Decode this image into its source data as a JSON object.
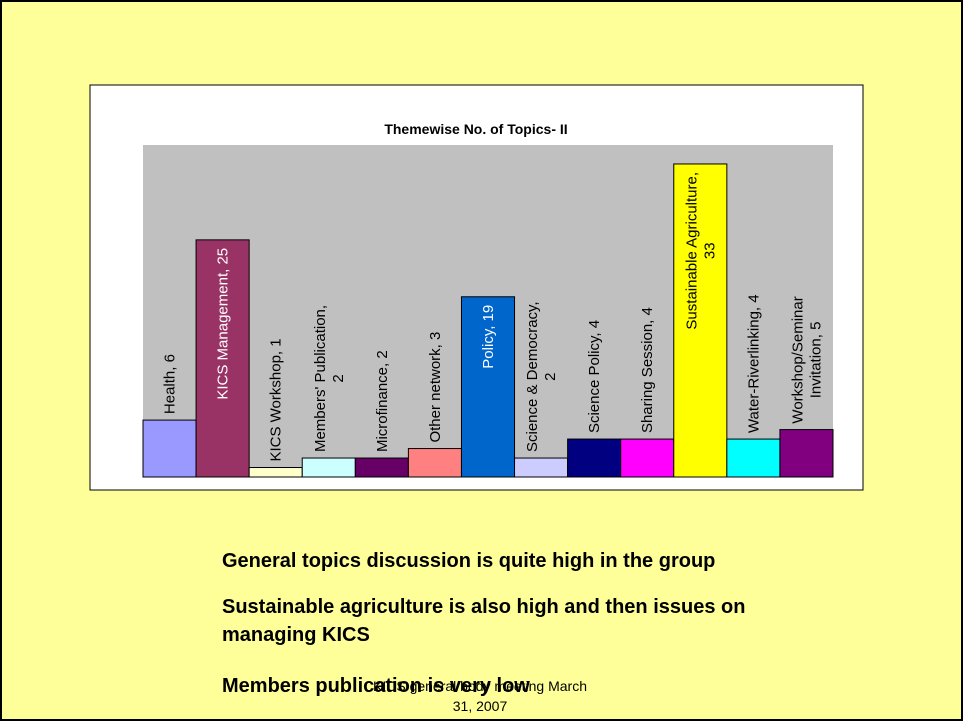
{
  "chart_data": {
    "type": "bar",
    "title": "Themewise No. of Topics- II",
    "values": [
      6,
      25,
      1,
      2,
      2,
      3,
      19,
      2,
      4,
      4,
      33,
      4,
      5
    ],
    "value_labels": [
      [
        "Health, 6"
      ],
      [
        "KICS Management, 25"
      ],
      [
        "KICS Workshop, 1"
      ],
      [
        "Members' Publication,",
        "2"
      ],
      [
        "Microfinance, 2"
      ],
      [
        "Other network, 3"
      ],
      [
        "Policy, 19"
      ],
      [
        "Science & Democracy,",
        "2"
      ],
      [
        "Science Policy, 4"
      ],
      [
        "Sharing Session, 4"
      ],
      [
        "Sustainable Agriculture,",
        "33"
      ],
      [
        "Water-Riverlinking, 4"
      ],
      [
        "Workshop/Seminar",
        "Invitation, 5"
      ]
    ],
    "colors": [
      "#9999FF",
      "#993366",
      "#FFFFCC",
      "#CCFFFF",
      "#660066",
      "#FF8080",
      "#0066CC",
      "#CCCCFF",
      "#000080",
      "#FF00FF",
      "#FFFF00",
      "#00FFFF",
      "#800080"
    ],
    "ylim": [
      0,
      35
    ]
  },
  "slide": {
    "bullets": [
      [
        "General topics discussion is quite high in the group"
      ],
      [
        "Sustainable agriculture is also high and then issues on",
        "managing KICS"
      ],
      [
        "Members publication is very low"
      ]
    ],
    "footer": [
      "KICS general body meeting March",
      "31, 2007"
    ]
  }
}
